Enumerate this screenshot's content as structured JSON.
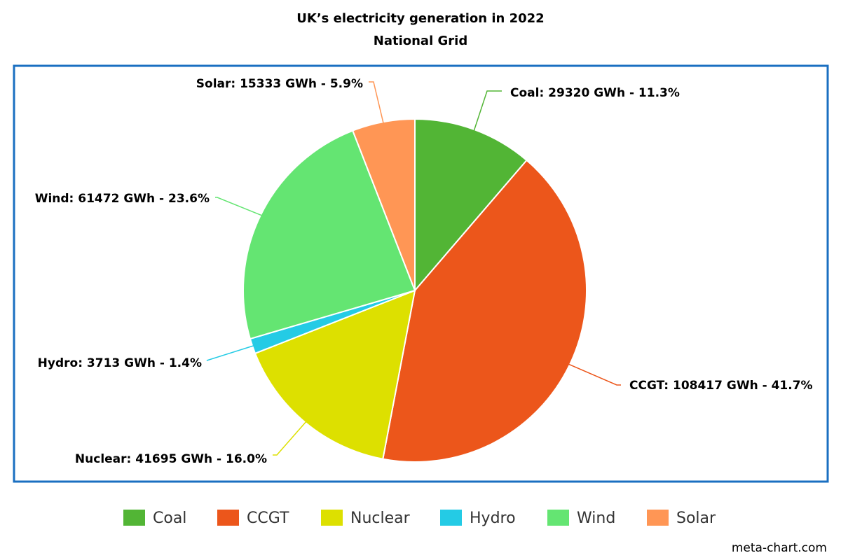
{
  "chart_data": {
    "type": "pie",
    "title": "UK’s electricity generation in 2022",
    "subtitle": "National Grid",
    "categories": [
      "Coal",
      "CCGT",
      "Nuclear",
      "Hydro",
      "Wind",
      "Solar"
    ],
    "values": [
      29320,
      108417,
      41695,
      3713,
      61472,
      15333
    ],
    "value_labels": [
      "Coal: 29320 GWh - 11.3%",
      "CCGT: 108417 GWh - 41.7%",
      "Nuclear: 41695 GWh - 16.0%",
      "Hydro: 3713 GWh - 1.4%",
      "Wind: 61472 GWh - 23.6%",
      "Solar: 15333 GWh - 5.9%"
    ],
    "colors": [
      "#52b535",
      "#ec561b",
      "#dde000",
      "#24cbe5",
      "#64e572",
      "#ff9655"
    ],
    "legend": "bottom",
    "credit": "meta-chart.com"
  }
}
